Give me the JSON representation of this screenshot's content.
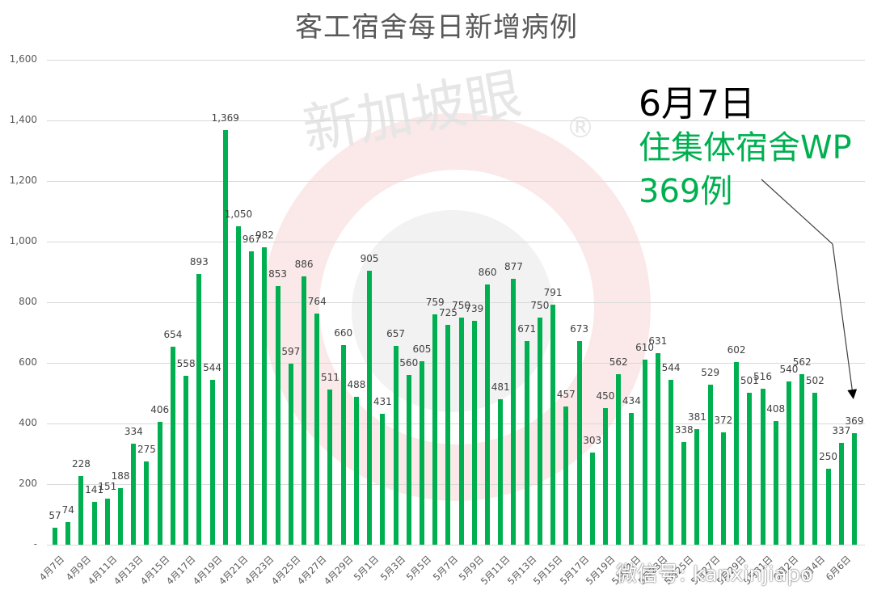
{
  "chart_data": {
    "type": "bar",
    "title": "客工宿舍每日新增病例",
    "xlabel": "",
    "ylabel": "",
    "ylim": [
      0,
      1600
    ],
    "yticks": [
      0,
      200,
      400,
      600,
      800,
      1000,
      1200,
      1400,
      1600
    ],
    "ytick_labels": [
      "-",
      "200",
      "400",
      "600",
      "800",
      "1,000",
      "1,200",
      "1,400",
      "1,600"
    ],
    "grid": true,
    "legend": null,
    "color": "#00b050",
    "categories": [
      "4月7日",
      "4月8日",
      "4月9日",
      "4月10日",
      "4月11日",
      "4月12日",
      "4月13日",
      "4月14日",
      "4月15日",
      "4月16日",
      "4月17日",
      "4月18日",
      "4月19日",
      "4月20日",
      "4月21日",
      "4月22日",
      "4月23日",
      "4月24日",
      "4月25日",
      "4月26日",
      "4月27日",
      "4月28日",
      "4月29日",
      "4月30日",
      "5月1日",
      "5月2日",
      "5月3日",
      "5月4日",
      "5月5日",
      "5月6日",
      "5月7日",
      "5月8日",
      "5月9日",
      "5月10日",
      "5月11日",
      "5月12日",
      "5月13日",
      "5月14日",
      "5月15日",
      "5月16日",
      "5月17日",
      "5月18日",
      "5月19日",
      "5月20日",
      "5月21日",
      "5月22日",
      "5月23日",
      "5月24日",
      "5月25日",
      "5月26日",
      "5月27日",
      "5月28日",
      "5月29日",
      "5月30日",
      "5月31日",
      "6月1日",
      "6月2日",
      "6月3日",
      "6月4日",
      "6月5日",
      "6月6日",
      "6月7日"
    ],
    "values": [
      57,
      74,
      228,
      141,
      151,
      188,
      334,
      275,
      406,
      654,
      558,
      893,
      544,
      1369,
      1050,
      967,
      982,
      853,
      597,
      886,
      764,
      511,
      660,
      488,
      905,
      431,
      657,
      560,
      605,
      759,
      725,
      750,
      739,
      860,
      481,
      877,
      671,
      750,
      791,
      457,
      673,
      303,
      450,
      562,
      434,
      610,
      631,
      544,
      338,
      381,
      529,
      372,
      602,
      501,
      516,
      408,
      540,
      562,
      502,
      250,
      337,
      369
    ],
    "value_labels": [
      "57",
      "74",
      "228",
      "141",
      "151",
      "188",
      "334",
      "275",
      "406",
      "654",
      "558",
      "893",
      "544",
      "1,369",
      "1,050",
      "967",
      "982",
      "853",
      "597",
      "886",
      "764",
      "511",
      "660",
      "488",
      "905",
      "431",
      "657",
      "560",
      "605",
      "759",
      "725",
      "750",
      "739",
      "860",
      "481",
      "877",
      "671",
      "750",
      "791",
      "457",
      "673",
      "303",
      "450",
      "562",
      "434",
      "610",
      "631",
      "544",
      "338",
      "381",
      "529",
      "372",
      "602",
      "501",
      "516",
      "408",
      "540",
      "562",
      "502",
      "250",
      "337",
      "369"
    ],
    "xtick_labels_shown": [
      "4月7日",
      "4月9日",
      "4月11日",
      "4月13日",
      "4月15日",
      "4月17日",
      "4月19日",
      "4月21日",
      "4月23日",
      "4月25日",
      "4月27日",
      "4月29日",
      "5月1日",
      "5月3日",
      "5月5日",
      "5月7日",
      "5月9日",
      "5月11日",
      "5月13日",
      "5月15日",
      "5月17日",
      "5月19日",
      "5月21日",
      "5月23日",
      "5月25日",
      "5月27日",
      "5月29日",
      "5月31日",
      "6月2日",
      "6月4日",
      "6月6日"
    ],
    "annotations": [
      {
        "text": "6月7日",
        "color": "#000000"
      },
      {
        "text": "住集体宿舍WP",
        "color": "#00b050"
      },
      {
        "text": "369例",
        "color": "#00b050"
      }
    ]
  },
  "annotation": {
    "date": "6月7日",
    "line1": "住集体宿舍WP",
    "line2": "369例"
  },
  "watermarks": {
    "brand": "新加坡眼",
    "registered": "®",
    "wechat": "微信号: kanxinjiapo"
  }
}
